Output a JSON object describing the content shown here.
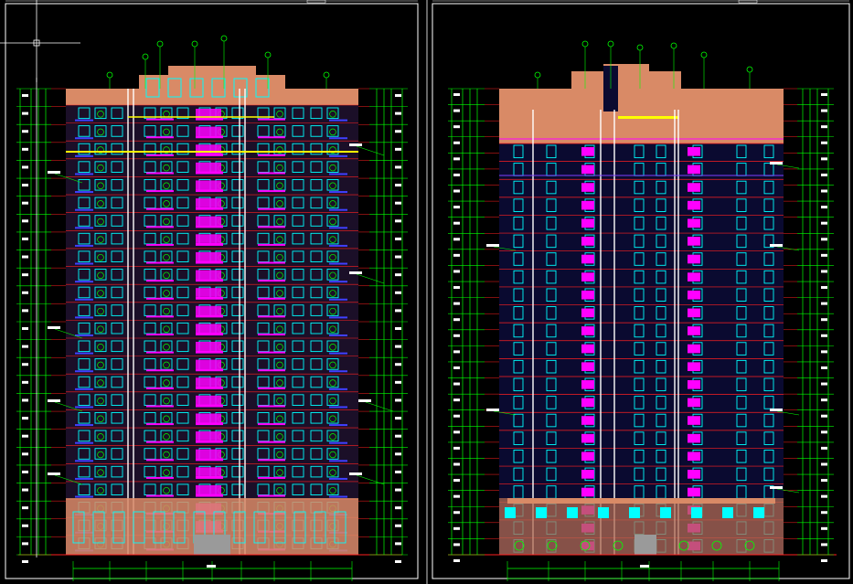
{
  "app": {
    "type": "cad-drawing",
    "background": "#000000",
    "panels": [
      {
        "id": "left-elevation",
        "floors": 26
      },
      {
        "id": "right-elevation",
        "floors": 26
      }
    ]
  },
  "colors": {
    "frame": "#ffffff",
    "dim": "#00ff00",
    "floorline": "#ff2020",
    "window": "#00ffff",
    "accent": "#ff00ff",
    "wall": "#d98a66",
    "yellow": "#ffff00",
    "blue": "#4040ff",
    "grey": "#9a9a9a"
  },
  "icons": {
    "crosshair": "crosshair-cursor-icon"
  }
}
